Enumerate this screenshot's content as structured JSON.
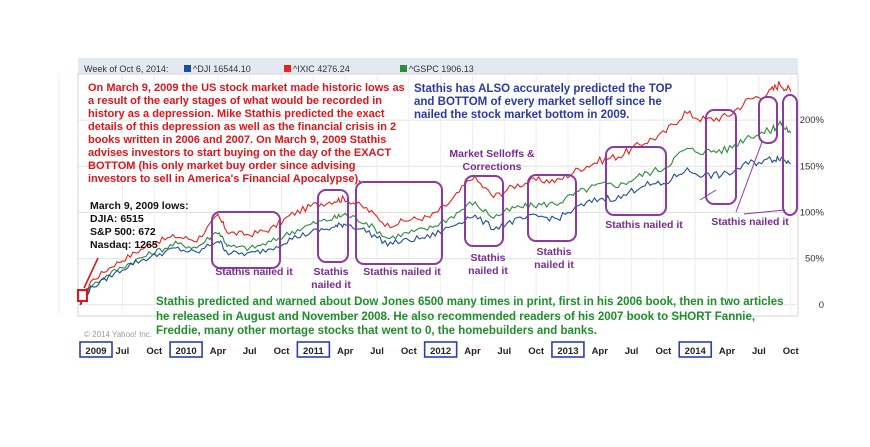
{
  "header": {
    "week_label": "Week of Oct 6, 2014:",
    "copyright": "© 2014 Yahoo! Inc."
  },
  "legend": [
    {
      "label": "^DJI 16544.10",
      "color": "#1f4e9c"
    },
    {
      "label": "^IXIC 4276.24",
      "color": "#e8231b"
    },
    {
      "label": "^GSPC 1906.13",
      "color": "#2e8b3e"
    }
  ],
  "annotations": {
    "intro": "On March 9, 2009 the US stock market made historic lows as a result of the early stages of what would be recorded in history as a depression. Mike Stathis predicted the exact details of this depression as well as the financial crisis in 2 books written in 2006 and 2007. On March 9, 2009 Stathis advises investors to start buying on the day of the EXACT BOTTOM (his only market buy order since advising investors to sell in America's Financial Apocalypse).",
    "top_bottom": "Stathis has ALSO accurately predicted the TOP and BOTTOM of every market selloff since he nailed the stock market bottom in 2009.",
    "march_lows": [
      "March 9, 2009 lows:",
      "DJIA: 6515",
      "S&P 500: 672",
      "Nasdaq: 1265"
    ],
    "selloffs": "Market Selloffs & Corrections",
    "dow_6500": "Stathis predicted and warned about Dow Jones 6500 many times in print, first in his 2006 book, then in two articles he released in August and November 2008. He also recommended readers of his 2007 book to SHORT Fannie, Freddie, many other mortage stocks that went to 0, the homebuilders and banks.",
    "nailed": "Stathis nailed it",
    "nailed_split": [
      "Stathis",
      "nailed it"
    ]
  },
  "chart_data": {
    "type": "line",
    "title": "",
    "xlabel": "",
    "ylabel": "",
    "x_ticks": [
      "2009",
      "Jul",
      "Oct",
      "2010",
      "Apr",
      "Jul",
      "Oct",
      "2011",
      "Apr",
      "Jul",
      "Oct",
      "2012",
      "Apr",
      "Jul",
      "Oct",
      "2013",
      "Apr",
      "Jul",
      "Oct",
      "2014",
      "Apr",
      "Jul",
      "Oct"
    ],
    "y_ticks": [
      "0",
      "50%",
      "100%",
      "150%",
      "200%"
    ],
    "ylim": [
      -0.1,
      2.5
    ],
    "y_unit": "percent change since March 9, 2009",
    "x": [
      "2009-03",
      "2009-04",
      "2009-06",
      "2009-08",
      "2009-10",
      "2009-12",
      "2010-02",
      "2010-04",
      "2010-05",
      "2010-07",
      "2010-09",
      "2010-11",
      "2011-01",
      "2011-03",
      "2011-04",
      "2011-06",
      "2011-08",
      "2011-10",
      "2011-12",
      "2012-02",
      "2012-04",
      "2012-06",
      "2012-08",
      "2012-10",
      "2012-12",
      "2013-02",
      "2013-04",
      "2013-06",
      "2013-08",
      "2013-10",
      "2013-12",
      "2014-02",
      "2014-04",
      "2014-06",
      "2014-08",
      "2014-09",
      "2014-10"
    ],
    "series": [
      {
        "name": "^IXIC 4276.24",
        "color": "#e8231b",
        "values": [
          0.0,
          0.25,
          0.42,
          0.55,
          0.68,
          0.74,
          0.7,
          0.96,
          0.78,
          0.76,
          0.82,
          0.98,
          1.08,
          1.13,
          1.15,
          1.04,
          0.86,
          0.92,
          0.95,
          1.12,
          1.39,
          1.17,
          1.29,
          1.35,
          1.34,
          1.47,
          1.56,
          1.62,
          1.75,
          1.85,
          2.08,
          2.0,
          2.04,
          2.22,
          2.3,
          2.4,
          2.31
        ]
      },
      {
        "name": "^GSPC 1906.13",
        "color": "#2e8b3e",
        "values": [
          0.0,
          0.2,
          0.35,
          0.47,
          0.57,
          0.66,
          0.62,
          0.8,
          0.63,
          0.61,
          0.68,
          0.79,
          0.88,
          0.94,
          0.98,
          0.89,
          0.72,
          0.78,
          0.83,
          0.95,
          1.11,
          0.95,
          1.05,
          1.08,
          1.1,
          1.22,
          1.3,
          1.3,
          1.41,
          1.48,
          1.68,
          1.66,
          1.68,
          1.83,
          1.88,
          1.97,
          1.86
        ]
      },
      {
        "name": "^DJI 16544.10",
        "color": "#1f4e9c",
        "values": [
          0.0,
          0.18,
          0.32,
          0.45,
          0.53,
          0.61,
          0.56,
          0.7,
          0.56,
          0.55,
          0.61,
          0.72,
          0.79,
          0.84,
          0.88,
          0.8,
          0.66,
          0.7,
          0.74,
          0.85,
          0.97,
          0.83,
          0.91,
          0.96,
          0.93,
          1.06,
          1.15,
          1.16,
          1.3,
          1.3,
          1.46,
          1.4,
          1.41,
          1.53,
          1.57,
          1.6,
          1.53
        ]
      }
    ],
    "grid": true,
    "legend_position": "top"
  }
}
